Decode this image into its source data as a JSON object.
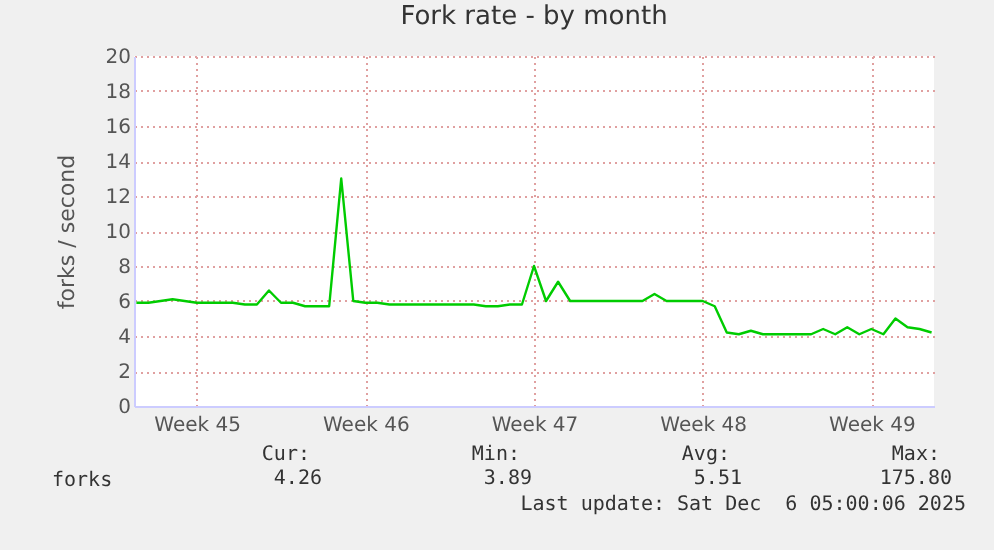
{
  "chart_data": {
    "type": "line",
    "title": "Fork rate - by month",
    "ylabel": "forks / second",
    "categories": [
      null,
      null,
      null,
      null,
      null,
      "Week 45",
      null,
      null,
      null,
      null,
      null,
      null,
      null,
      null,
      null,
      null,
      null,
      null,
      null,
      "Week 46",
      null,
      null,
      null,
      null,
      null,
      null,
      null,
      null,
      null,
      null,
      null,
      null,
      null,
      "Week 47",
      null,
      null,
      null,
      null,
      null,
      null,
      null,
      null,
      null,
      null,
      null,
      null,
      null,
      "Week 48",
      null,
      null,
      null,
      null,
      null,
      null,
      null,
      null,
      null,
      null,
      null,
      null,
      null,
      "Week 49",
      null,
      null,
      null,
      null,
      null
    ],
    "ylim": [
      0,
      20
    ],
    "yticks": [
      0,
      2,
      4,
      6,
      8,
      10,
      12,
      14,
      16,
      18,
      20
    ],
    "grid": true,
    "legend": "bottom left",
    "series": [
      {
        "name": "forks",
        "color": "#00cc00",
        "values": [
          5.9,
          5.9,
          6.0,
          6.1,
          6.0,
          5.9,
          5.9,
          5.9,
          5.9,
          5.8,
          5.8,
          6.6,
          5.9,
          5.9,
          5.7,
          5.7,
          5.7,
          13.0,
          6.0,
          5.9,
          5.9,
          5.8,
          5.8,
          5.8,
          5.8,
          5.8,
          5.8,
          5.8,
          5.8,
          5.7,
          5.7,
          5.8,
          5.8,
          8.0,
          6.0,
          7.1,
          6.0,
          6.0,
          6.0,
          6.0,
          6.0,
          6.0,
          6.0,
          6.4,
          6.0,
          6.0,
          6.0,
          6.0,
          5.7,
          4.2,
          4.1,
          4.3,
          4.1,
          4.1,
          4.1,
          4.1,
          4.1,
          4.4,
          4.1,
          4.5,
          4.1,
          4.4,
          4.1,
          5.0,
          4.5,
          4.4,
          4.2
        ]
      }
    ],
    "annotations": [
      "Cur:",
      "4.26",
      "Min:",
      "3.89",
      "Avg:",
      "5.51",
      "Max:",
      "175.80",
      "Last update: Sat Dec  6 05:00:06 2025"
    ]
  }
}
